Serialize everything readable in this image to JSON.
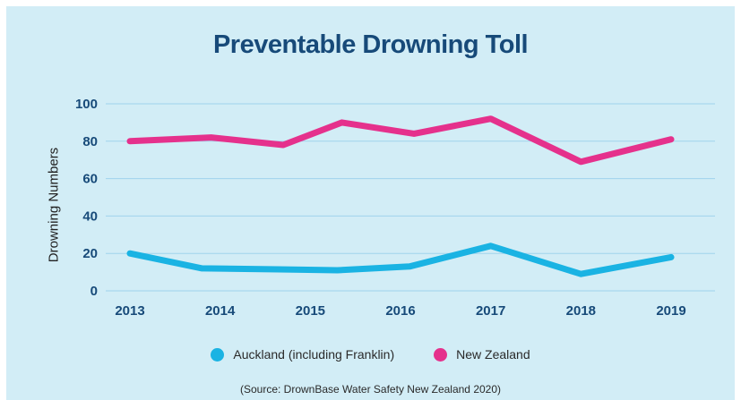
{
  "chart_data": {
    "type": "line",
    "title": "Preventable Drowning Toll",
    "ylabel": "Drowning Numbers",
    "xlabel": "",
    "ylim": [
      0,
      100
    ],
    "yticks": [
      0,
      20,
      40,
      60,
      80,
      100
    ],
    "grid": true,
    "legend_position": "bottom",
    "source": "(Source: DrownBase Water Safety New Zealand 2020)",
    "x_tick_labels": [
      "2013",
      "2014",
      "2015",
      "2016",
      "2017",
      "2018",
      "2019"
    ],
    "series": [
      {
        "name": "Auckland (including Franklin)",
        "color": "#1ab3e3",
        "x": [
          2013,
          2013.8,
          2014.65,
          2015.3,
          2016.1,
          2017,
          2018,
          2019
        ],
        "values": [
          20,
          12,
          11.5,
          11,
          13,
          24,
          9,
          18
        ]
      },
      {
        "name": "New Zealand",
        "color": "#e5318c",
        "x": [
          2013,
          2013.9,
          2014.7,
          2015.35,
          2016.15,
          2017,
          2018,
          2019
        ],
        "values": [
          80,
          82,
          78,
          90,
          84,
          92,
          69,
          81
        ]
      }
    ]
  }
}
